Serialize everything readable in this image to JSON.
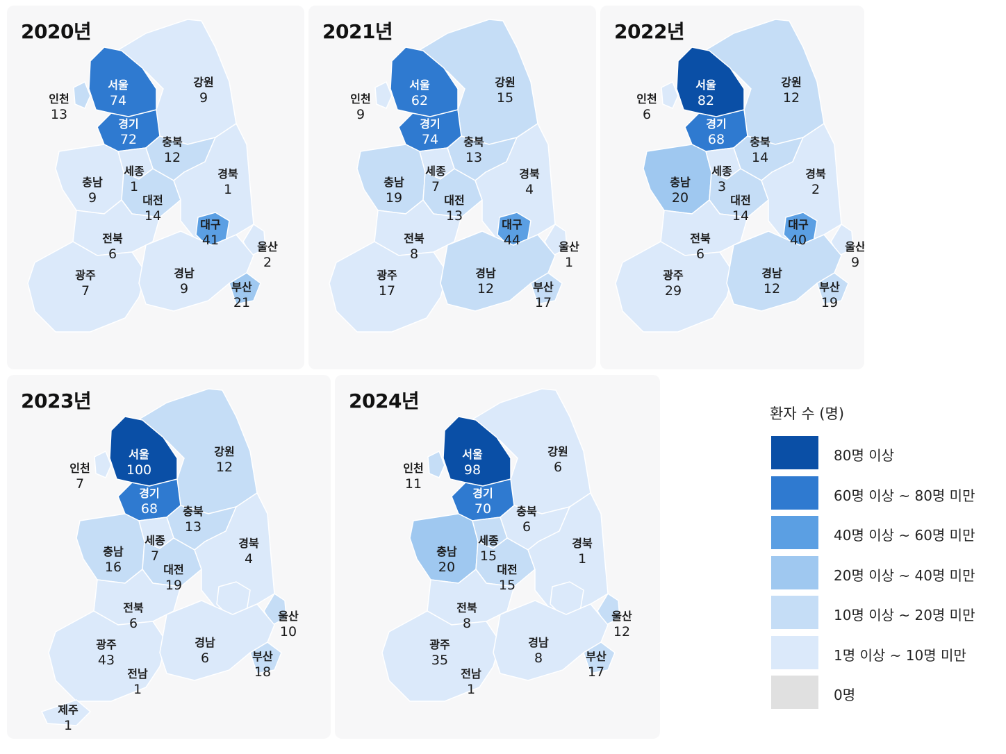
{
  "colors": {
    "c80": "#0a4fa6",
    "c60": "#2f7ad0",
    "c40": "#5b9fe3",
    "c20": "#9fc8f0",
    "c10": "#c5ddf6",
    "c1": "#dbe9fa",
    "c0": "#e0e0e0",
    "panel_bg": "#f7f7f8",
    "border": "#ffffff"
  },
  "legend": {
    "title": "환자 수 (명)",
    "items": [
      {
        "label": "80명 이상",
        "color": "#0a4fa6"
      },
      {
        "label": "60명 이상 ~ 80명 미만",
        "color": "#2f7ad0"
      },
      {
        "label": "40명 이상 ~ 60명 미만",
        "color": "#5b9fe3"
      },
      {
        "label": "20명 이상 ~ 40명 미만",
        "color": "#9fc8f0"
      },
      {
        "label": "10명 이상 ~ 20명 미만",
        "color": "#c5ddf6"
      },
      {
        "label": "1명 이상 ~ 10명 미만",
        "color": "#dbe9fa"
      },
      {
        "label": "0명",
        "color": "#e0e0e0"
      }
    ]
  },
  "maps": [
    {
      "year": "2020년",
      "regions": {
        "서울": {
          "name": "서울",
          "value": "74"
        },
        "경기": {
          "name": "경기",
          "value": "72"
        },
        "인천": {
          "name": "인천",
          "value": "13"
        },
        "강원": {
          "name": "강원",
          "value": "9"
        },
        "충북": {
          "name": "충북",
          "value": "12"
        },
        "세종": {
          "name": "세종",
          "value": "1"
        },
        "충남": {
          "name": "충남",
          "value": "9"
        },
        "대전": {
          "name": "대전",
          "value": "14"
        },
        "경북": {
          "name": "경북",
          "value": "1"
        },
        "대구": {
          "name": "대구",
          "value": "41"
        },
        "전북": {
          "name": "전북",
          "value": "6"
        },
        "광주": {
          "name": "광주",
          "value": "7"
        },
        "경남": {
          "name": "경남",
          "value": "9"
        },
        "울산": {
          "name": "울산",
          "value": "2"
        },
        "부산": {
          "name": "부산",
          "value": "21"
        }
      }
    },
    {
      "year": "2021년",
      "regions": {
        "서울": {
          "name": "서울",
          "value": "62"
        },
        "경기": {
          "name": "경기",
          "value": "74"
        },
        "인천": {
          "name": "인천",
          "value": "9"
        },
        "강원": {
          "name": "강원",
          "value": "15"
        },
        "충북": {
          "name": "충북",
          "value": "13"
        },
        "세종": {
          "name": "세종",
          "value": "7"
        },
        "충남": {
          "name": "충남",
          "value": "19"
        },
        "대전": {
          "name": "대전",
          "value": "13"
        },
        "경북": {
          "name": "경북",
          "value": "4"
        },
        "대구": {
          "name": "대구",
          "value": "44"
        },
        "전북": {
          "name": "전북",
          "value": "8"
        },
        "광주": {
          "name": "광주",
          "value": "17"
        },
        "경남": {
          "name": "경남",
          "value": "12"
        },
        "울산": {
          "name": "울산",
          "value": "1"
        },
        "부산": {
          "name": "부산",
          "value": "17"
        }
      }
    },
    {
      "year": "2022년",
      "regions": {
        "서울": {
          "name": "서울",
          "value": "82"
        },
        "경기": {
          "name": "경기",
          "value": "68"
        },
        "인천": {
          "name": "인천",
          "value": "6"
        },
        "강원": {
          "name": "강원",
          "value": "12"
        },
        "충북": {
          "name": "충북",
          "value": "14"
        },
        "세종": {
          "name": "세종",
          "value": "3"
        },
        "충남": {
          "name": "충남",
          "value": "20"
        },
        "대전": {
          "name": "대전",
          "value": "14"
        },
        "경북": {
          "name": "경북",
          "value": "2"
        },
        "대구": {
          "name": "대구",
          "value": "40"
        },
        "전북": {
          "name": "전북",
          "value": "6"
        },
        "광주": {
          "name": "광주",
          "value": "29"
        },
        "경남": {
          "name": "경남",
          "value": "12"
        },
        "울산": {
          "name": "울산",
          "value": "9"
        },
        "부산": {
          "name": "부산",
          "value": "19"
        }
      }
    },
    {
      "year": "2023년",
      "regions": {
        "서울": {
          "name": "서울",
          "value": "100"
        },
        "경기": {
          "name": "경기",
          "value": "68"
        },
        "인천": {
          "name": "인천",
          "value": "7"
        },
        "강원": {
          "name": "강원",
          "value": "12"
        },
        "충북": {
          "name": "충북",
          "value": "13"
        },
        "세종": {
          "name": "세종",
          "value": "7"
        },
        "충남": {
          "name": "충남",
          "value": "16"
        },
        "대전": {
          "name": "대전",
          "value": "19"
        },
        "경북": {
          "name": "경북",
          "value": "4"
        },
        "전북": {
          "name": "전북",
          "value": "6"
        },
        "광주": {
          "name": "광주",
          "value": "43"
        },
        "경남": {
          "name": "경남",
          "value": "6"
        },
        "울산": {
          "name": "울산",
          "value": "10"
        },
        "부산": {
          "name": "부산",
          "value": "18"
        },
        "전남": {
          "name": "전남",
          "value": "1"
        },
        "제주": {
          "name": "제주",
          "value": "1"
        }
      }
    },
    {
      "year": "2024년",
      "regions": {
        "서울": {
          "name": "서울",
          "value": "98"
        },
        "경기": {
          "name": "경기",
          "value": "70"
        },
        "인천": {
          "name": "인천",
          "value": "11"
        },
        "강원": {
          "name": "강원",
          "value": "6"
        },
        "충북": {
          "name": "충북",
          "value": "6"
        },
        "세종": {
          "name": "세종",
          "value": "15"
        },
        "충남": {
          "name": "충남",
          "value": "20"
        },
        "대전": {
          "name": "대전",
          "value": "15"
        },
        "경북": {
          "name": "경북",
          "value": "1"
        },
        "전북": {
          "name": "전북",
          "value": "8"
        },
        "광주": {
          "name": "광주",
          "value": "35"
        },
        "경남": {
          "name": "경남",
          "value": "8"
        },
        "울산": {
          "name": "울산",
          "value": "12"
        },
        "부산": {
          "name": "부산",
          "value": "17"
        },
        "전남": {
          "name": "전남",
          "value": "1"
        }
      }
    }
  ]
}
